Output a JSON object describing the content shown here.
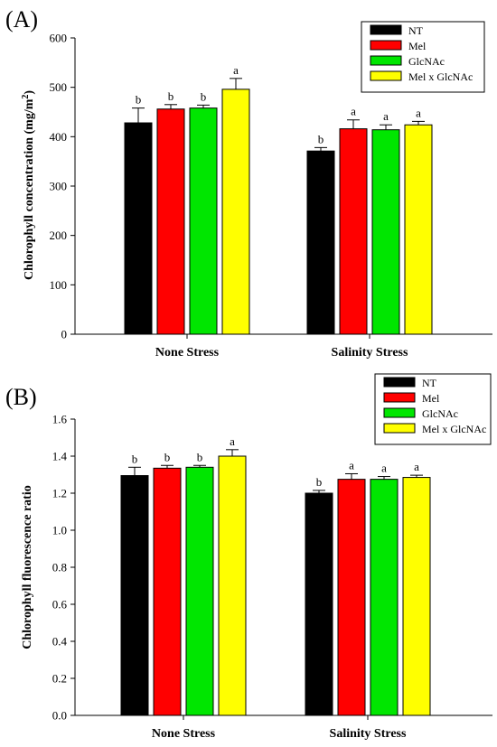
{
  "chart_data": [
    {
      "type": "bar",
      "panel_label": "(A)",
      "title": "",
      "xlabel": "",
      "ylabel": "Chlorophyll concentration (mg/m",
      "ylabel_superscript": "2",
      "ylabel_close": ")",
      "categories": [
        "None Stress",
        "Salinity Stress"
      ],
      "ylim": [
        0,
        600
      ],
      "yticks": [
        0,
        100,
        200,
        300,
        400,
        500,
        600
      ],
      "ytick_labels": [
        "0",
        "100",
        "200",
        "300",
        "400",
        "500",
        "600"
      ],
      "legend_position": "top-right",
      "grid": false,
      "series": [
        {
          "name": "NT",
          "color": "#000000",
          "values": [
            428,
            371
          ],
          "errors": [
            30,
            7
          ],
          "letters": [
            "b",
            "b"
          ]
        },
        {
          "name": "Mel",
          "color": "#ff0000",
          "values": [
            456,
            416
          ],
          "errors": [
            9,
            18
          ],
          "letters": [
            "b",
            "a"
          ]
        },
        {
          "name": "GlcNAc",
          "color": "#00e600",
          "values": [
            458,
            414
          ],
          "errors": [
            6,
            10
          ],
          "letters": [
            "b",
            "a"
          ]
        },
        {
          "name": "Mel x GlcNAc",
          "color": "#ffff00",
          "values": [
            496,
            424
          ],
          "errors": [
            22,
            7
          ],
          "letters": [
            "a",
            "a"
          ]
        }
      ]
    },
    {
      "type": "bar",
      "panel_label": "(B)",
      "title": "",
      "xlabel": "",
      "ylabel": "Chlorophyll fluorescence ratio",
      "categories": [
        "None Stress",
        "Salinity Stress"
      ],
      "ylim": [
        0,
        1.6
      ],
      "yticks": [
        0,
        0.2,
        0.4,
        0.6,
        0.8,
        1.0,
        1.2,
        1.4,
        1.6
      ],
      "ytick_labels": [
        "0.0",
        "0.2",
        "0.4",
        "0.6",
        "0.8",
        "1.0",
        "1.2",
        "1.4",
        "1.6"
      ],
      "legend_position": "top-right",
      "grid": false,
      "series": [
        {
          "name": "NT",
          "color": "#000000",
          "values": [
            1.295,
            1.2
          ],
          "errors": [
            0.045,
            0.015
          ],
          "letters": [
            "b",
            "b"
          ]
        },
        {
          "name": "Mel",
          "color": "#ff0000",
          "values": [
            1.335,
            1.275
          ],
          "errors": [
            0.015,
            0.03
          ],
          "letters": [
            "b",
            "a"
          ]
        },
        {
          "name": "GlcNAc",
          "color": "#00e600",
          "values": [
            1.34,
            1.275
          ],
          "errors": [
            0.01,
            0.015
          ],
          "letters": [
            "b",
            "a"
          ]
        },
        {
          "name": "Mel x GlcNAc",
          "color": "#ffff00",
          "values": [
            1.4,
            1.285
          ],
          "errors": [
            0.035,
            0.012
          ],
          "letters": [
            "a",
            "a"
          ]
        }
      ]
    }
  ]
}
